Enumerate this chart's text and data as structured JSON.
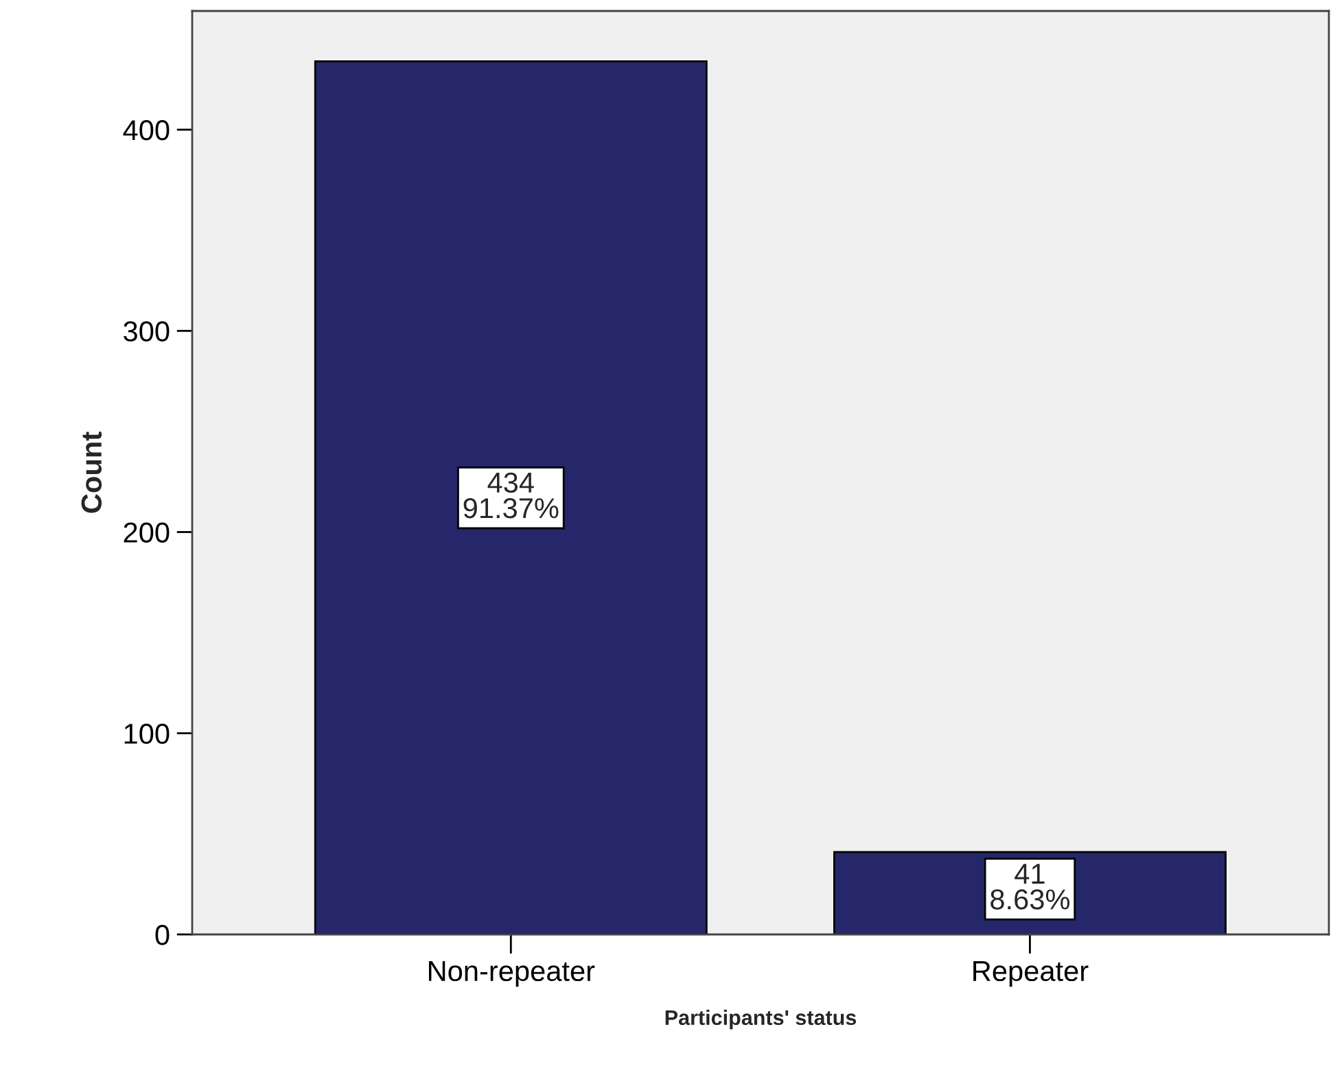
{
  "chart_data": {
    "type": "bar",
    "xlabel": "Participants' status",
    "ylabel": "Count",
    "categories": [
      "Non-repeater",
      "Repeater"
    ],
    "values": [
      434,
      41
    ],
    "value_labels": [
      "434\n91.37%",
      "41\n8.63%"
    ],
    "color": "#26276b",
    "ylim": [
      0,
      459
    ],
    "yticks": [
      0,
      100,
      200,
      300,
      400
    ],
    "grid": false,
    "legend": false
  }
}
